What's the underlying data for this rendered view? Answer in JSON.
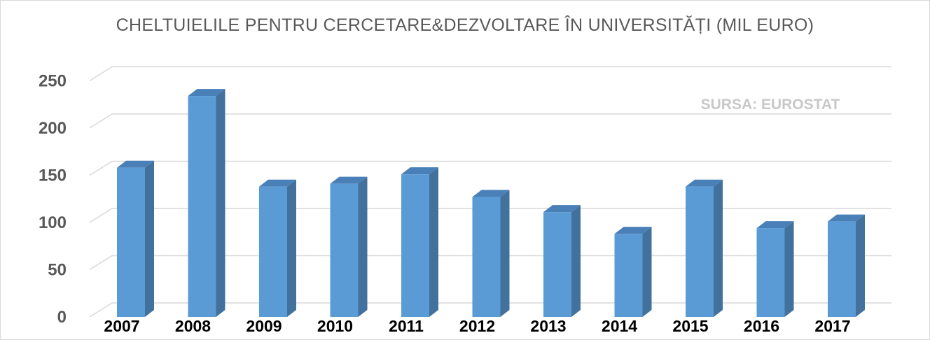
{
  "chart_data": {
    "type": "bar",
    "title": "CHELTUIELILE PENTRU CERCETARE&DEZVOLTARE ÎN UNIVERSITĂȚI (MIL EURO)",
    "annotation": "SURSA: EUROSTAT",
    "categories": [
      "2007",
      "2008",
      "2009",
      "2010",
      "2011",
      "2012",
      "2013",
      "2014",
      "2015",
      "2016",
      "2017"
    ],
    "values": [
      158,
      234,
      138,
      141,
      151,
      127,
      111,
      88,
      138,
      94,
      101
    ],
    "yticks": [
      0,
      50,
      100,
      150,
      200,
      250
    ],
    "ylim": [
      0,
      270
    ],
    "grid": true,
    "legend": "none",
    "style": "3d-column",
    "colors": {
      "bar_front": "#5b9bd5",
      "bar_side": "#41719c",
      "bar_top": "#4a80b8",
      "grid": "#d9d9d9"
    }
  }
}
